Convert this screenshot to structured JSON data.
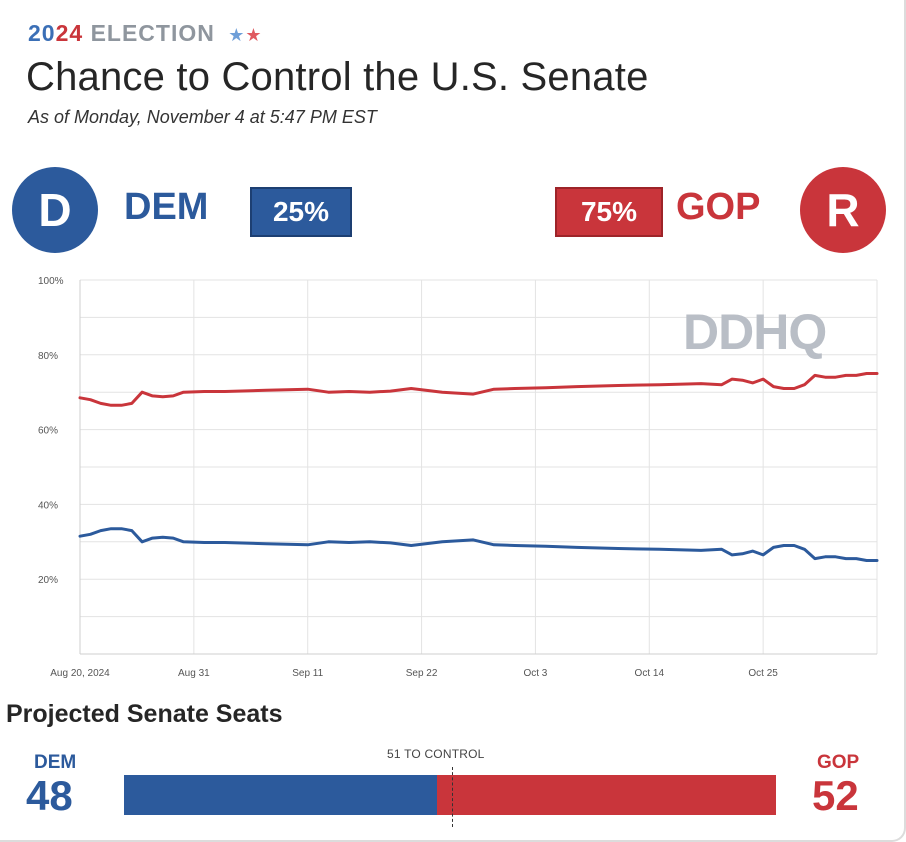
{
  "header": {
    "kicker_year_a": "20",
    "kicker_year_b": "24",
    "kicker_word": "ELECTION",
    "kicker_stars": [
      "★",
      "★"
    ],
    "title": "Chance to Control the U.S. Senate",
    "subtitle": "As of Monday, November 4 at 5:47 PM EST"
  },
  "parties": {
    "dem": {
      "letter": "D",
      "name": "DEM",
      "chance": "25%",
      "color": "#2c5a9c"
    },
    "gop": {
      "letter": "R",
      "name": "GOP",
      "chance": "75%",
      "color": "#c9353b"
    }
  },
  "watermark": "DDHQ",
  "chart_data": {
    "type": "line",
    "title": "Chance to Control the U.S. Senate",
    "xlabel": "",
    "ylabel": "",
    "x_start": "2024-08-20",
    "x_end": "2024-11-04",
    "ylim": [
      0,
      100
    ],
    "y_ticks": [
      20,
      40,
      60,
      80,
      100
    ],
    "y_tick_labels": [
      "20%",
      "40%",
      "60%",
      "80%",
      "100%"
    ],
    "x_ticks": [
      0,
      11,
      22,
      33,
      44,
      55,
      66
    ],
    "x_tick_labels": [
      "Aug 20, 2024",
      "Aug 31",
      "Sep 11",
      "Sep 22",
      "Oct 3",
      "Oct 14",
      "Oct 25"
    ],
    "grid": true,
    "series": [
      {
        "name": "GOP",
        "color": "#c9353b",
        "x": [
          0,
          1,
          2,
          3,
          4,
          5,
          6,
          7,
          8,
          9,
          10,
          12,
          14,
          18,
          22,
          24,
          26,
          28,
          30,
          32,
          35,
          38,
          40,
          42,
          45,
          48,
          52,
          56,
          60,
          62,
          63,
          64,
          65,
          66,
          67,
          68,
          69,
          70,
          71,
          72,
          73,
          74,
          75,
          76,
          77
        ],
        "values": [
          68.5,
          68.0,
          67.0,
          66.5,
          66.5,
          67.0,
          70.0,
          69.0,
          68.8,
          69.0,
          70.0,
          70.2,
          70.2,
          70.5,
          70.8,
          70.0,
          70.2,
          70.0,
          70.3,
          71.0,
          70.0,
          69.5,
          70.8,
          71.0,
          71.2,
          71.5,
          71.8,
          72.0,
          72.3,
          72.0,
          73.5,
          73.2,
          72.5,
          73.5,
          71.5,
          71.0,
          71.0,
          72.0,
          74.5,
          74.0,
          74.0,
          74.5,
          74.5,
          75.0,
          75.0
        ]
      },
      {
        "name": "DEM",
        "color": "#2c5a9c",
        "x": [
          0,
          1,
          2,
          3,
          4,
          5,
          6,
          7,
          8,
          9,
          10,
          12,
          14,
          18,
          22,
          24,
          26,
          28,
          30,
          32,
          35,
          38,
          40,
          42,
          45,
          48,
          52,
          56,
          60,
          62,
          63,
          64,
          65,
          66,
          67,
          68,
          69,
          70,
          71,
          72,
          73,
          74,
          75,
          76,
          77
        ],
        "values": [
          31.5,
          32.0,
          33.0,
          33.5,
          33.5,
          33.0,
          30.0,
          31.0,
          31.2,
          31.0,
          30.0,
          29.8,
          29.8,
          29.5,
          29.2,
          30.0,
          29.8,
          30.0,
          29.7,
          29.0,
          30.0,
          30.5,
          29.2,
          29.0,
          28.8,
          28.5,
          28.2,
          28.0,
          27.7,
          28.0,
          26.5,
          26.8,
          27.5,
          26.5,
          28.5,
          29.0,
          29.0,
          28.0,
          25.5,
          26.0,
          26.0,
          25.5,
          25.5,
          25.0,
          25.0
        ]
      }
    ]
  },
  "seats": {
    "title": "Projected Senate Seats",
    "dem_label": "DEM",
    "dem_seats": 48,
    "gop_label": "GOP",
    "gop_seats": 52,
    "control_label": "51 TO CONTROL",
    "total": 100
  }
}
